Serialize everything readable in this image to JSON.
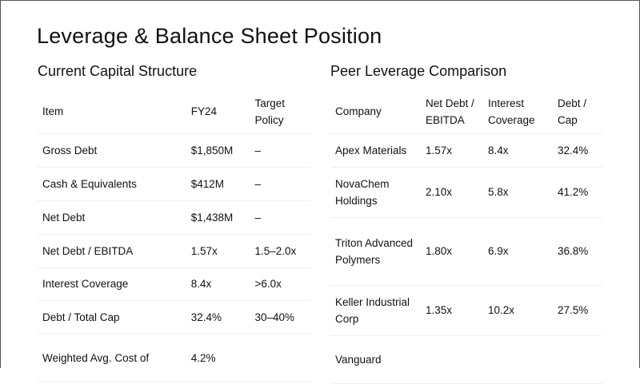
{
  "title": "Leverage & Balance Sheet Position",
  "capital_structure": {
    "heading": "Current Capital Structure",
    "columns": [
      "Item",
      "FY24",
      "Target Policy"
    ],
    "rows": [
      {
        "item": "Gross Debt",
        "fy24": "$1,850M",
        "target": "–",
        "bold": false
      },
      {
        "item": "Cash & Equivalents",
        "fy24": "$412M",
        "target": "–",
        "bold": false
      },
      {
        "item": "Net Debt",
        "fy24": "$1,438M",
        "target": "–",
        "bold": true
      },
      {
        "item": "Net Debt / EBITDA",
        "fy24": "1.57x",
        "target": "1.5–2.0x",
        "bold": false
      },
      {
        "item": "Interest Coverage",
        "fy24": "8.4x",
        "target": ">6.0x",
        "bold": false
      },
      {
        "item": "Debt / Total Cap",
        "fy24": "32.4%",
        "target": "30–40%",
        "bold": false
      },
      {
        "item": "Weighted Avg. Cost of",
        "fy24": "4.2%",
        "target": "",
        "bold": false
      }
    ]
  },
  "peer_comparison": {
    "heading": "Peer Leverage Comparison",
    "columns": [
      "Company",
      "Net Debt / EBITDA",
      "Interest Coverage",
      "Debt / Cap"
    ],
    "rows": [
      {
        "company": "Apex Materials",
        "nd_ebitda": "1.57x",
        "coverage": "8.4x",
        "debt_cap": "32.4%",
        "bold": true
      },
      {
        "company": "NovaChem Holdings",
        "nd_ebitda": "2.10x",
        "coverage": "5.8x",
        "debt_cap": "41.2%",
        "bold": false
      },
      {
        "company": "Triton Advanced Polymers",
        "nd_ebitda": "1.80x",
        "coverage": "6.9x",
        "debt_cap": "36.8%",
        "bold": false
      },
      {
        "company": "Keller Industrial Corp",
        "nd_ebitda": "1.35x",
        "coverage": "10.2x",
        "debt_cap": "27.5%",
        "bold": false
      },
      {
        "company": "Vanguard",
        "nd_ebitda": "",
        "coverage": "",
        "debt_cap": "",
        "bold": false
      }
    ]
  }
}
